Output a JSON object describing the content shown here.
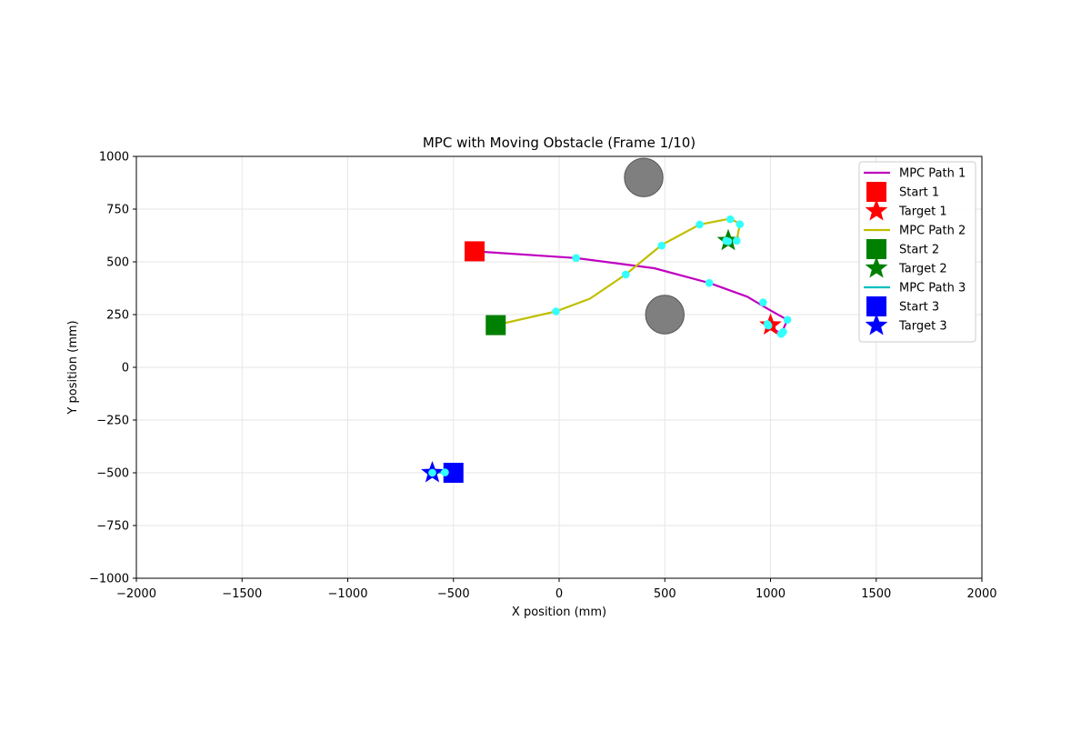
{
  "chart_data": {
    "type": "line",
    "title": "MPC with Moving Obstacle (Frame 1/10)",
    "xlabel": "X position (mm)",
    "ylabel": "Y position (mm)",
    "xlim": [
      -2000,
      2000
    ],
    "ylim": [
      -1000,
      1000
    ],
    "xticks": [
      -2000,
      -1500,
      -1000,
      -500,
      0,
      500,
      1000,
      1500,
      2000
    ],
    "yticks": [
      -1000,
      -750,
      -500,
      -250,
      0,
      250,
      500,
      750,
      1000
    ],
    "xtick_labels": [
      "−2000",
      "−1500",
      "−1000",
      "−500",
      "0",
      "500",
      "1000",
      "1500",
      "2000"
    ],
    "ytick_labels": [
      "−1000",
      "−750",
      "−500",
      "−250",
      "0",
      "250",
      "500",
      "750",
      "1000"
    ],
    "grid": true,
    "legend_position": "top-right",
    "legend": [
      {
        "label": "MPC Path 1",
        "kind": "line",
        "color": "#bf00bf"
      },
      {
        "label": "Start 1",
        "kind": "square",
        "color": "#ff0000"
      },
      {
        "label": "Target 1",
        "kind": "star",
        "color": "#ff0000"
      },
      {
        "label": "MPC Path 2",
        "kind": "line",
        "color": "#bfbf00"
      },
      {
        "label": "Start 2",
        "kind": "square",
        "color": "#008000"
      },
      {
        "label": "Target 2",
        "kind": "star",
        "color": "#008000"
      },
      {
        "label": "MPC Path 3",
        "kind": "line",
        "color": "#00bfbf"
      },
      {
        "label": "Start 3",
        "kind": "square",
        "color": "#0000ff"
      },
      {
        "label": "Target 3",
        "kind": "star",
        "color": "#0000ff"
      }
    ],
    "series": [
      {
        "name": "MPC Path 1",
        "color": "#bf00bf",
        "start": [
          -400,
          550
        ],
        "target": [
          1000,
          200
        ],
        "target_color": "#ff0000",
        "start_color": "#ff0000",
        "path": [
          [
            -400,
            550
          ],
          [
            80,
            518
          ],
          [
            450,
            470
          ],
          [
            710,
            400
          ],
          [
            890,
            335
          ],
          [
            1000,
            270
          ],
          [
            1080,
            225
          ],
          [
            1050,
            158
          ],
          [
            990,
            198
          ]
        ],
        "waypoints": [
          [
            80,
            518
          ],
          [
            710,
            400
          ],
          [
            965,
            308
          ],
          [
            1080,
            225
          ],
          [
            1060,
            168
          ],
          [
            1050,
            158
          ],
          [
            990,
            198
          ],
          [
            985,
            205
          ]
        ]
      },
      {
        "name": "MPC Path 2",
        "color": "#bfbf00",
        "start": [
          -300,
          200
        ],
        "target": [
          800,
          600
        ],
        "target_color": "#008000",
        "start_color": "#008000",
        "path": [
          [
            -300,
            200
          ],
          [
            -15,
            265
          ],
          [
            145,
            325
          ],
          [
            315,
            440
          ],
          [
            485,
            580
          ],
          [
            665,
            677
          ],
          [
            810,
            705
          ],
          [
            855,
            680
          ],
          [
            840,
            600
          ],
          [
            795,
            595
          ]
        ],
        "waypoints": [
          [
            -15,
            265
          ],
          [
            315,
            440
          ],
          [
            485,
            577
          ],
          [
            665,
            677
          ],
          [
            810,
            702
          ],
          [
            855,
            678
          ],
          [
            840,
            600
          ],
          [
            800,
            597
          ],
          [
            790,
            600
          ]
        ]
      },
      {
        "name": "MPC Path 3",
        "color": "#00bfbf",
        "start": [
          -500,
          -500
        ],
        "target": [
          -600,
          -500
        ],
        "target_color": "#0000ff",
        "start_color": "#0000ff",
        "path": [
          [
            -500,
            -500
          ],
          [
            -540,
            -498
          ],
          [
            -600,
            -500
          ]
        ],
        "waypoints": [
          [
            -540,
            -498
          ],
          [
            -600,
            -500
          ]
        ]
      }
    ],
    "obstacles": [
      {
        "center": [
          400,
          900
        ],
        "radius": 80
      },
      {
        "center": [
          500,
          250
        ],
        "radius": 80
      }
    ]
  }
}
